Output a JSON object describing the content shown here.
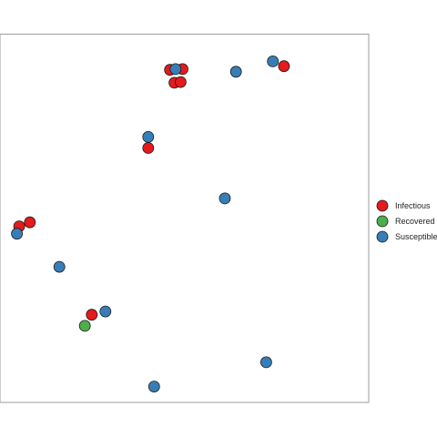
{
  "chart_data": {
    "type": "scatter",
    "title": "",
    "xlabel": "",
    "ylabel": "",
    "xlim": [
      0,
      100
    ],
    "ylim": [
      0,
      100
    ],
    "grid": false,
    "legend_position": "right",
    "series": [
      {
        "name": "Infectious",
        "color": "#e41a1c",
        "points": [
          {
            "x": 46.1,
            "y": 90.3
          },
          {
            "x": 49.5,
            "y": 90.5
          },
          {
            "x": 47.3,
            "y": 86.8
          },
          {
            "x": 49.0,
            "y": 87.0
          },
          {
            "x": 77.0,
            "y": 91.3
          },
          {
            "x": 40.2,
            "y": 69.1
          },
          {
            "x": 5.2,
            "y": 47.8
          },
          {
            "x": 8.1,
            "y": 48.9
          },
          {
            "x": 24.9,
            "y": 23.8
          }
        ]
      },
      {
        "name": "Recovered",
        "color": "#4daf4a",
        "points": [
          {
            "x": 23.0,
            "y": 20.8
          }
        ]
      },
      {
        "name": "Susceptible",
        "color": "#377eb8",
        "points": [
          {
            "x": 47.6,
            "y": 90.5
          },
          {
            "x": 64.0,
            "y": 89.8
          },
          {
            "x": 74.0,
            "y": 92.6
          },
          {
            "x": 40.2,
            "y": 72.1
          },
          {
            "x": 61.0,
            "y": 55.4
          },
          {
            "x": 4.6,
            "y": 45.8
          },
          {
            "x": 16.1,
            "y": 36.8
          },
          {
            "x": 28.6,
            "y": 24.7
          },
          {
            "x": 72.2,
            "y": 10.9
          },
          {
            "x": 41.8,
            "y": 4.3
          }
        ]
      }
    ],
    "legend": {
      "entries": [
        "Infectious",
        "Recovered",
        "Susceptible"
      ]
    }
  }
}
